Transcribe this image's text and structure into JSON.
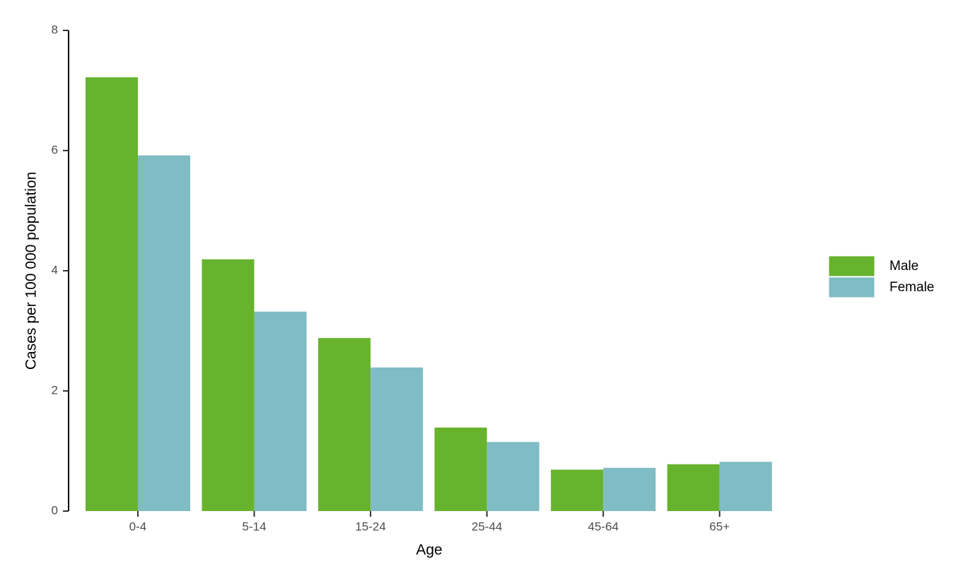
{
  "chart_data": {
    "type": "bar",
    "x_label": "Age",
    "y_label": "Cases per 100 000 population",
    "categories": [
      "0-4",
      "5-14",
      "15-24",
      "25-44",
      "45-64",
      "65+"
    ],
    "series": [
      {
        "name": "Male",
        "color": "#67b32e",
        "values": [
          7.22,
          4.19,
          2.88,
          1.39,
          0.69,
          0.78
        ]
      },
      {
        "name": "Female",
        "color": "#7fbcc4",
        "values": [
          5.92,
          3.32,
          2.39,
          1.15,
          0.72,
          0.82
        ]
      }
    ],
    "ylim": [
      0,
      8
    ],
    "yticks": [
      0,
      2,
      4,
      6,
      8
    ],
    "grid": false,
    "legend": "right"
  }
}
